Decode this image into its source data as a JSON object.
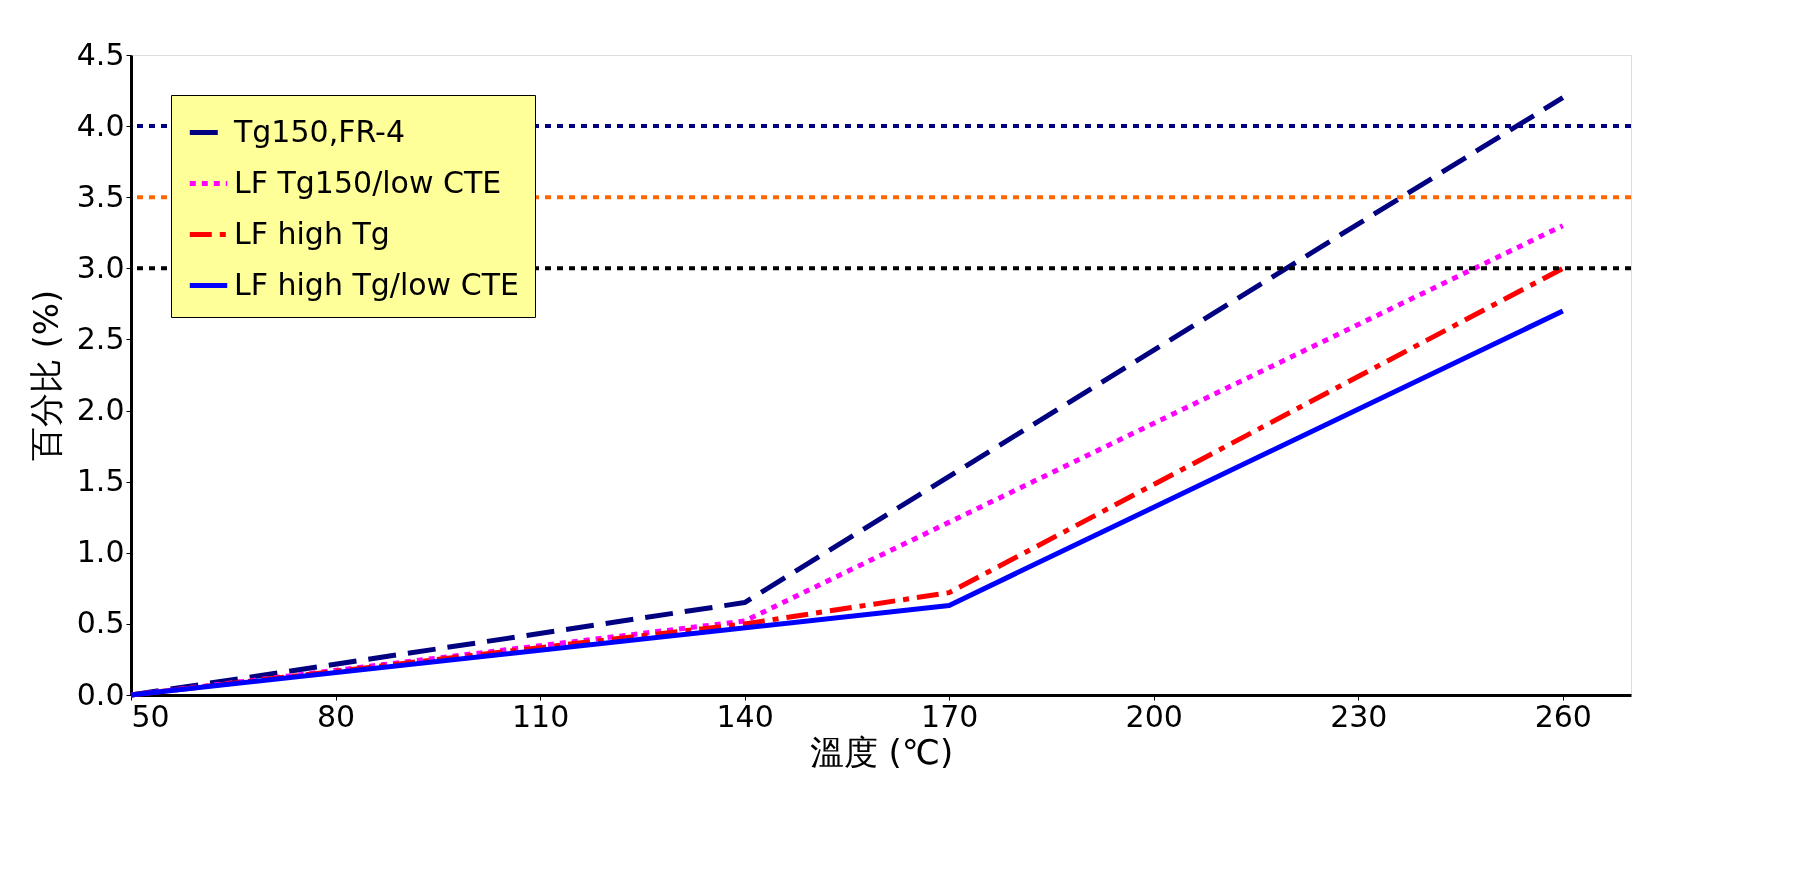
{
  "chart_data": {
    "type": "line",
    "xlabel": "溫度 (℃)",
    "ylabel": "百分比 (%)",
    "xlim": [
      50,
      270
    ],
    "xticks": [
      50,
      80,
      110,
      140,
      170,
      200,
      230,
      260
    ],
    "ylim": [
      0,
      4.5
    ],
    "yticks": [
      {
        "value": 0,
        "label": "0.0"
      },
      0.5,
      {
        "value": 1,
        "label": "1.0"
      },
      1.5,
      {
        "value": 2,
        "label": "2.0"
      },
      2.5,
      {
        "value": 3,
        "label": "3.0"
      },
      3.5,
      {
        "value": 4,
        "label": "4.0"
      },
      4.5
    ],
    "grid": false,
    "legend": "top left",
    "marker": "none",
    "series": [
      {
        "name": "Tg150,FR-4",
        "color": "#000080",
        "line_style": "dashed",
        "x": [
          50,
          140,
          260
        ],
        "values": [
          0,
          0.65,
          4.2
        ]
      },
      {
        "name": "LF Tg150/low CTE",
        "color": "#ff00ff",
        "line_style": "dotted",
        "x": [
          50,
          140,
          260
        ],
        "values": [
          0,
          0.52,
          3.3
        ]
      },
      {
        "name": "LF high Tg",
        "color": "#ff0000",
        "line_style": "dashdot",
        "x": [
          50,
          140,
          170,
          260
        ],
        "values": [
          0,
          0.5,
          0.72,
          3.0
        ]
      },
      {
        "name": "LF high Tg/low CTE",
        "color": "#0000ff",
        "line_style": "solid",
        "x": [
          50,
          170,
          260
        ],
        "values": [
          0,
          0.63,
          2.7
        ]
      }
    ],
    "ref_lines": [
      {
        "axis": "y",
        "value": 4.0,
        "color": "#000080",
        "line_style": "dotted"
      },
      {
        "axis": "y",
        "value": 3.5,
        "color": "#ff6600",
        "line_style": "dotted"
      },
      {
        "axis": "y",
        "value": 3.0,
        "color": "#000000",
        "line_style": "dotted"
      }
    ]
  }
}
